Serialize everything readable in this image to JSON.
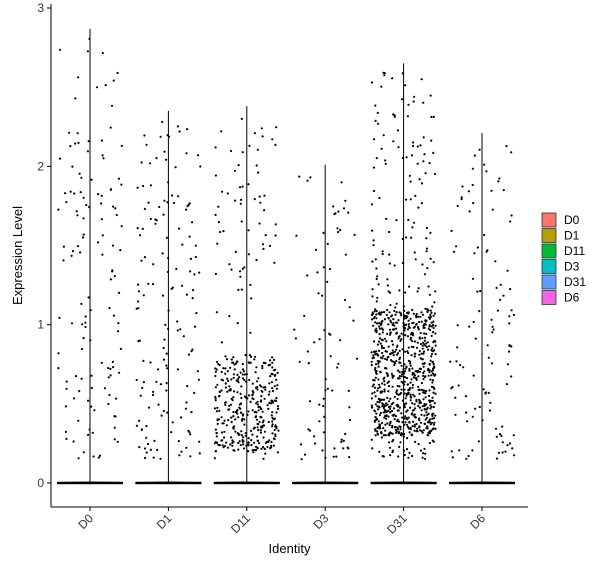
{
  "chart_data": {
    "type": "violin-jitter",
    "title": "",
    "xlabel": "Identity",
    "ylabel": "Expression Level",
    "ylim": [
      -0.15,
      3.02
    ],
    "yticks": [
      0,
      1,
      2,
      3
    ],
    "grid": false,
    "legend_placement": "right",
    "categories": [
      "D0",
      "D1",
      "D11",
      "D3",
      "D31",
      "D6"
    ],
    "series": [
      {
        "name": "D0",
        "color": "#F8766D",
        "max": 2.87,
        "points": 130,
        "zero_fraction": "high",
        "dense_band": null
      },
      {
        "name": "D1",
        "color": "#B79F00",
        "max": 2.35,
        "points": 150,
        "zero_fraction": "high",
        "dense_band": null
      },
      {
        "name": "D11",
        "color": "#00BA38",
        "max": 2.38,
        "points": 420,
        "zero_fraction": "high",
        "dense_band": [
          0.2,
          0.8
        ]
      },
      {
        "name": "D3",
        "color": "#00BFC4",
        "max": 2.01,
        "points": 80,
        "zero_fraction": "high",
        "dense_band": null
      },
      {
        "name": "D31",
        "color": "#619CFF",
        "max": 2.65,
        "points": 900,
        "zero_fraction": "medium",
        "dense_band": [
          0.3,
          1.1
        ]
      },
      {
        "name": "D6",
        "color": "#F564E3",
        "max": 2.21,
        "points": 110,
        "zero_fraction": "high",
        "dense_band": null
      }
    ]
  }
}
